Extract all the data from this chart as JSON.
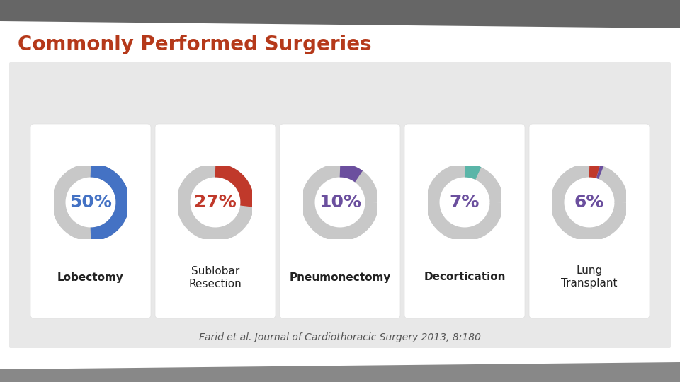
{
  "title": "Commonly Performed Surgeries",
  "title_color": "#b5391a",
  "title_fontsize": 20,
  "items": [
    {
      "pct": 50,
      "label": "Lobectomy",
      "label2": "",
      "arc_color": "#4472c4",
      "text_color": "#4472c4",
      "extra_arc_color": null,
      "extra_arc_pct": 0
    },
    {
      "pct": 27,
      "label": "Sublobar",
      "label2": "Resection",
      "arc_color": "#c0392b",
      "text_color": "#c0392b",
      "extra_arc_color": null,
      "extra_arc_pct": 0
    },
    {
      "pct": 10,
      "label": "Pneumonectomy",
      "label2": "",
      "arc_color": "#6b4f9e",
      "text_color": "#6b4f9e",
      "extra_arc_color": null,
      "extra_arc_pct": 0
    },
    {
      "pct": 7,
      "label": "Decortication",
      "label2": "",
      "arc_color": "#5ab5a8",
      "text_color": "#6b4f9e",
      "extra_arc_color": null,
      "extra_arc_pct": 0
    },
    {
      "pct": 6,
      "label": "Lung",
      "label2": "Transplant",
      "arc_color": "#c0392b",
      "text_color": "#6b4f9e",
      "extra_arc_color": "#6b4f9e",
      "extra_arc_pct": 1.5
    }
  ],
  "gray_arc_color": "#c8c8c8",
  "arc_lw": 14,
  "citation": "Farid et al. Journal of Cardiothoracic Surgery 2013, 8:180",
  "citation_color": "#555555",
  "citation_fontstyle": "italic",
  "citation_fontsize": 10,
  "label_fontsize": 11,
  "pct_fontsize": 18,
  "card_bg": "#ffffff",
  "card_edge": "#e0e0e0",
  "panel_bg": "#e8e8e8",
  "slide_bg": "#ffffff",
  "top_stripe_color": "#666666",
  "bottom_stripe_color": "#888888"
}
